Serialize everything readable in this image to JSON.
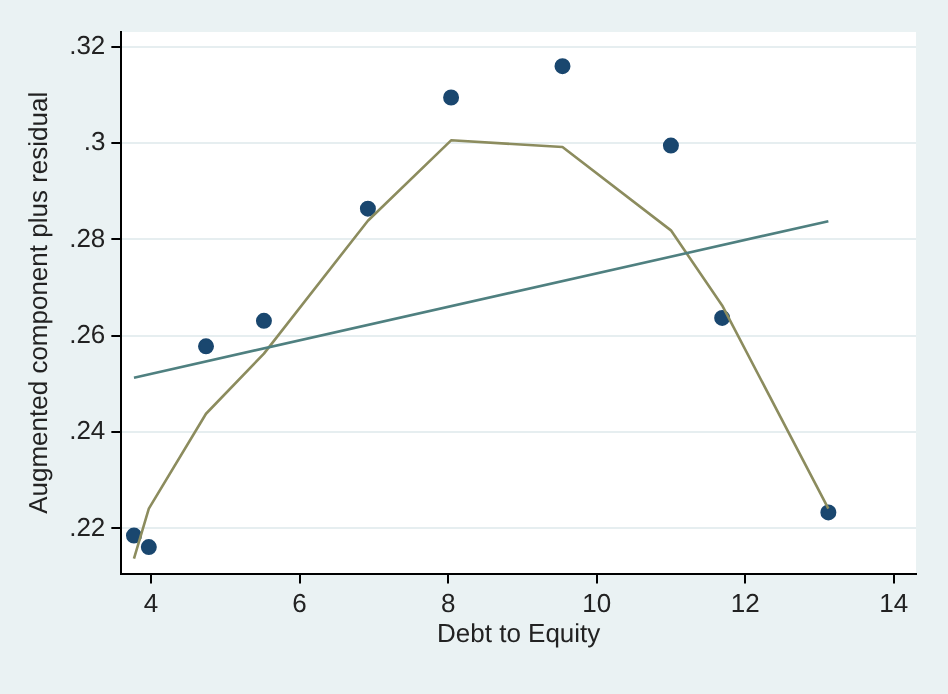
{
  "chart_data": {
    "type": "scatter",
    "xlabel": "Debt to Equity",
    "ylabel": "Augmented component plus residual",
    "xlim": [
      3.6,
      14.3
    ],
    "xticks": [
      4,
      6,
      8,
      10,
      12,
      14
    ],
    "ylim": [
      0.2106,
      0.3231
    ],
    "yticks": [
      {
        "value": 0.22,
        "label": ".22"
      },
      {
        "value": 0.24,
        "label": ".24"
      },
      {
        "value": 0.26,
        "label": ".26"
      },
      {
        "value": 0.28,
        "label": ".28"
      },
      {
        "value": 0.3,
        "label": ".3"
      },
      {
        "value": 0.32,
        "label": ".32"
      }
    ],
    "grid": "y",
    "legend": false,
    "series": [
      {
        "type": "scatter",
        "color": "#1a476f",
        "marker": "circle",
        "x": [
          3.77,
          3.97,
          4.74,
          5.52,
          6.92,
          8.04,
          9.54,
          11.0,
          11.69,
          13.12
        ],
        "values": [
          0.2185,
          0.2161,
          0.2578,
          0.2631,
          0.2864,
          0.3095,
          0.316,
          0.2995,
          0.2637,
          0.2233
        ]
      },
      {
        "type": "line",
        "color": "#4f8080",
        "marker": "none",
        "x": [
          3.77,
          13.12
        ],
        "values": [
          0.2513,
          0.2838
        ]
      },
      {
        "type": "line",
        "color": "#8c8c5e",
        "marker": "none",
        "x": [
          3.77,
          3.97,
          4.74,
          5.52,
          6.92,
          8.04,
          9.54,
          11.0,
          11.69,
          13.12
        ],
        "values": [
          0.2137,
          0.2241,
          0.2438,
          0.2563,
          0.2839,
          0.3006,
          0.2992,
          0.2819,
          0.2663,
          0.2241
        ]
      }
    ]
  }
}
